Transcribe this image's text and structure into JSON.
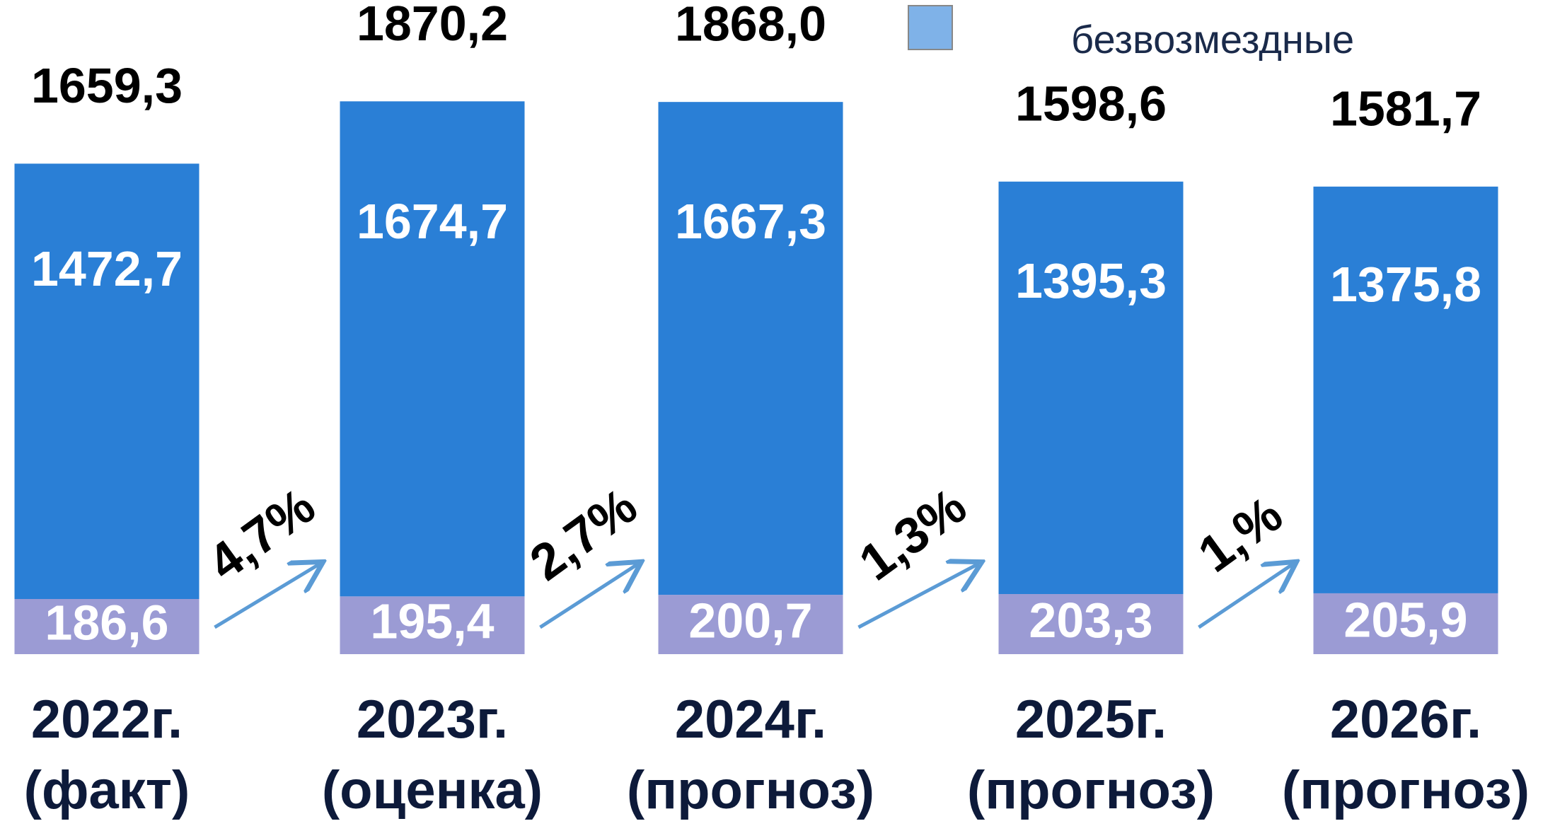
{
  "chart_data": {
    "type": "stacked_bar",
    "categories": [
      [
        "2022г.",
        "(факт)"
      ],
      [
        "2023г.",
        "(оценка)"
      ],
      [
        "2024г.",
        "(прогноз)"
      ],
      [
        "2025г.",
        "(прогноз)"
      ],
      [
        "2026г.",
        "(прогноз)"
      ]
    ],
    "series": [
      {
        "name": "безвозмездные",
        "color": "#9b9bd4",
        "values": [
          186.6,
          195.4,
          200.7,
          203.3,
          205.9
        ],
        "value_labels": [
          "186,6",
          "195,4",
          "200,7",
          "203,3",
          "205,9"
        ]
      },
      {
        "color": "#2a7fd6",
        "values": [
          1472.7,
          1674.7,
          1667.3,
          1395.3,
          1375.8
        ],
        "value_labels": [
          "1472,7",
          "1674,7",
          "1667,3",
          "1395,3",
          "1375,8"
        ]
      }
    ],
    "totals": [
      1659.3,
      1870.2,
      1868.0,
      1598.6,
      1581.7
    ],
    "total_labels": [
      "1659,3",
      "1870,2",
      "1868,0",
      "1598,6",
      "1581,7"
    ],
    "annotations": [
      "4,7%",
      "2,7%",
      "1,3%",
      "1,%"
    ],
    "legend_color": "#7fb2e8",
    "ylim": [
      0,
      2000
    ]
  }
}
